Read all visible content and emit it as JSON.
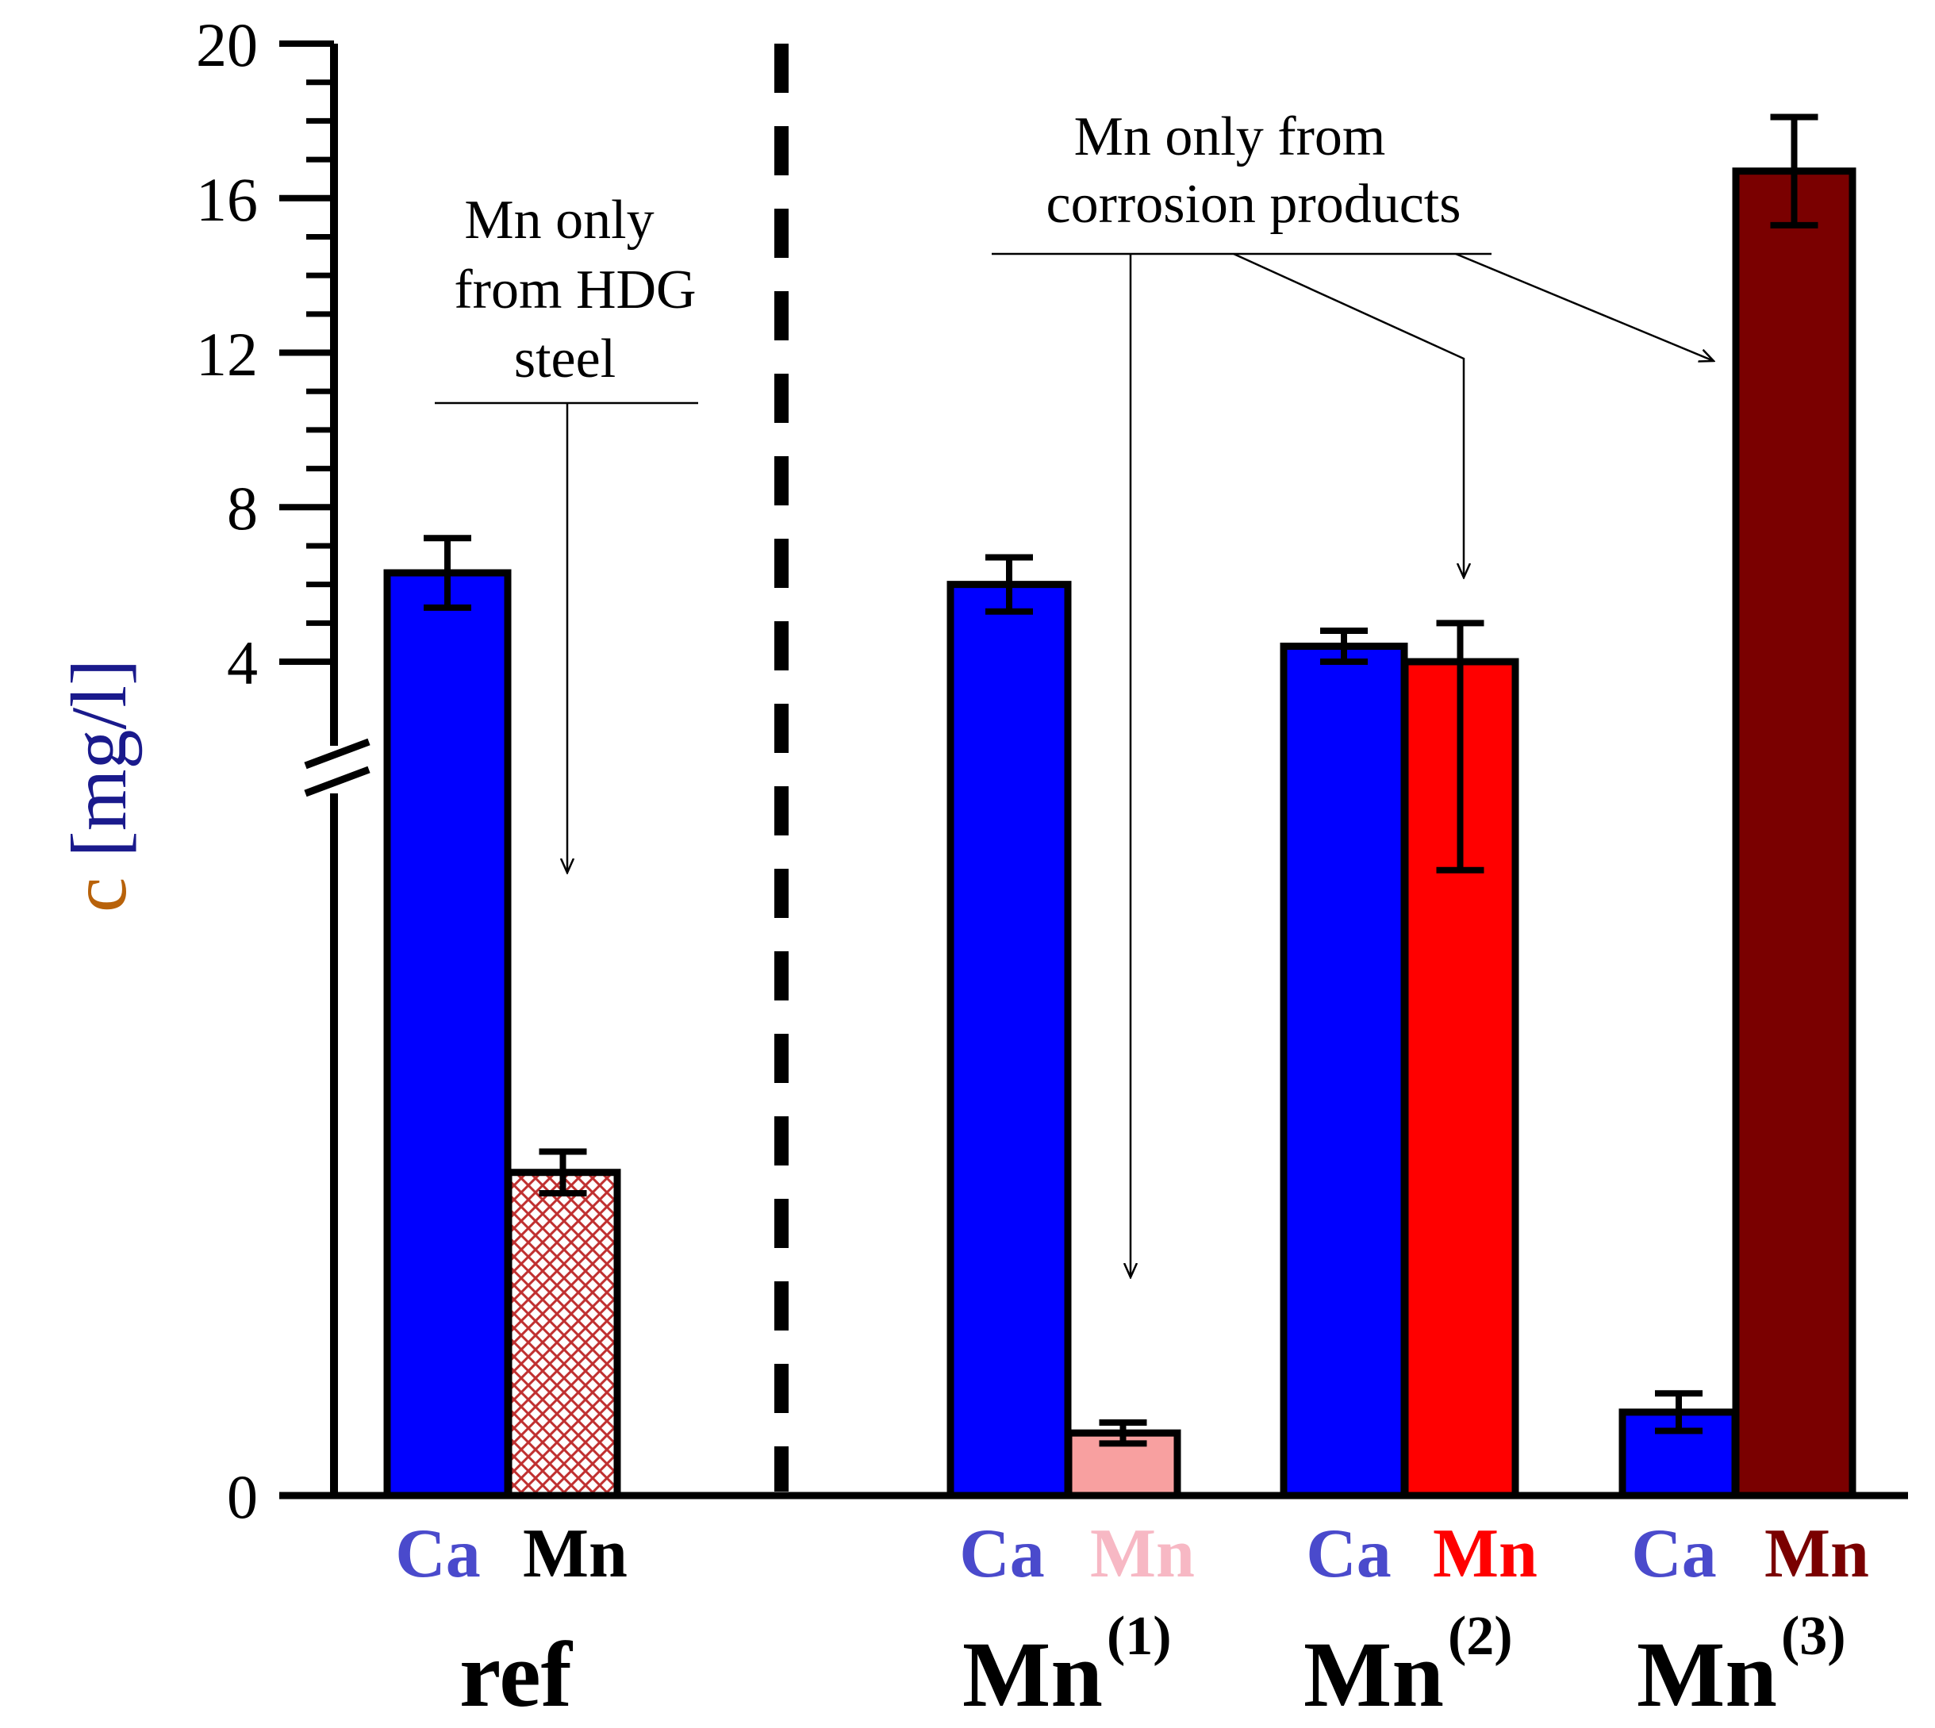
{
  "chart_data": {
    "type": "bar",
    "title": "",
    "xlabel": "",
    "ylabel": "c [mg/l]",
    "ylabel_colors": {
      "symbol": "#b8620a",
      "unit": "#1a1a8c"
    },
    "y_axis": {
      "ticks": [
        "0",
        "4",
        "8",
        "12",
        "16",
        "20"
      ],
      "broken": true,
      "break_between": [
        0,
        4
      ],
      "upper_range": [
        4,
        20
      ]
    },
    "groups": [
      {
        "name": "ref",
        "sup": "",
        "bars": [
          {
            "element": "Ca",
            "value": 6.3,
            "err": 0.9,
            "color": "#0000ff",
            "label_color": "#4a4acc",
            "pattern": "none"
          },
          {
            "element": "Mn",
            "value": 1.55,
            "err": 0.1,
            "color": "#ffffff",
            "label_color": "#000000",
            "pattern": "hatch"
          }
        ]
      },
      {
        "name": "Mn",
        "sup": "(1)",
        "bars": [
          {
            "element": "Ca",
            "value": 6.0,
            "err": 0.7,
            "color": "#0000ff",
            "label_color": "#4a4acc",
            "pattern": "none"
          },
          {
            "element": "Mn",
            "value": 0.3,
            "err": 0.05,
            "color": "#f8a0a0",
            "label_color": "#f7b8c4",
            "pattern": "none"
          }
        ]
      },
      {
        "name": "Mn",
        "sup": "(2)",
        "bars": [
          {
            "element": "Ca",
            "value": 4.4,
            "err": 0.4,
            "color": "#0000ff",
            "label_color": "#4a4acc",
            "pattern": "none"
          },
          {
            "element": "Mn",
            "value": 4.0,
            "err": 1.0,
            "color": "#ff0000",
            "label_color": "#ff0000",
            "pattern": "none"
          }
        ]
      },
      {
        "name": "Mn",
        "sup": "(3)",
        "bars": [
          {
            "element": "Ca",
            "value": 0.4,
            "err": 0.09,
            "color": "#0000ff",
            "label_color": "#4a4acc",
            "pattern": "none"
          },
          {
            "element": "Mn",
            "value": 16.7,
            "err": 1.4,
            "color": "#7a0000",
            "label_color": "#7a0000",
            "pattern": "none"
          }
        ]
      }
    ],
    "annotations": [
      {
        "id": "hdg",
        "lines": [
          "Mn only",
          "from HDG",
          "steel"
        ]
      },
      {
        "id": "corrosion",
        "lines": [
          "Mn only from",
          "corrosion products"
        ]
      }
    ],
    "separator": "dashed vertical line between ref and Mn groups"
  }
}
